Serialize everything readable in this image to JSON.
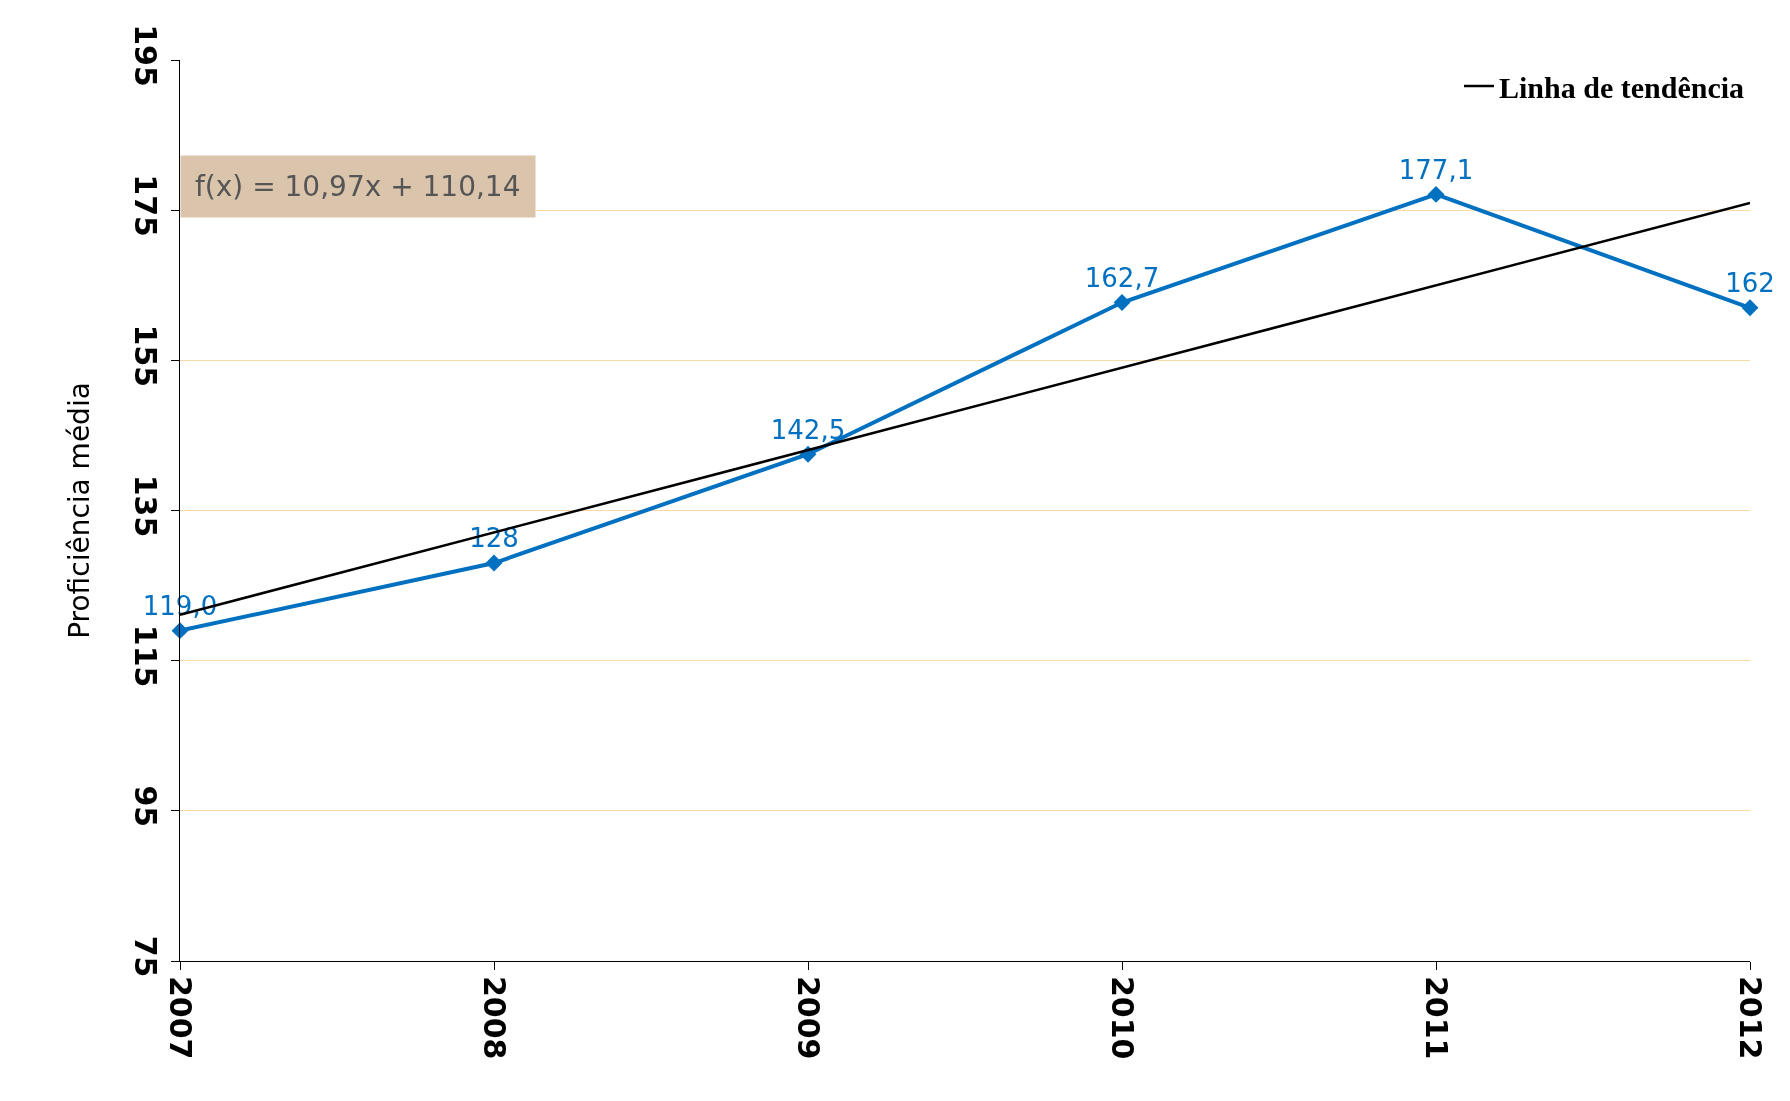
{
  "chart_data": {
    "type": "line",
    "ylabel": "Proficiência média",
    "x": [
      2007,
      2008,
      2009,
      2010,
      2011,
      2012
    ],
    "xlim": [
      2007,
      2012
    ],
    "xticks": [
      2007,
      2008,
      2009,
      2010,
      2011,
      2012
    ],
    "ylim": [
      75,
      195
    ],
    "yticks": [
      75,
      95,
      115,
      135,
      155,
      175,
      195
    ],
    "series": [
      {
        "color": "#0070c0",
        "values": [
          119.0,
          128,
          142.5,
          162.7,
          177.1,
          162
        ],
        "value_labels": [
          "119,0",
          "128",
          "142,5",
          "162,7",
          "177,1",
          "162"
        ],
        "marker": "diamond"
      },
      {
        "name": "Linha de tendência",
        "color": "#000000",
        "x": [
          2007,
          2012
        ],
        "values": [
          121.11,
          175.96
        ],
        "marker": "none"
      }
    ],
    "annotations": [
      "f(x) = 10,97x + 110,14"
    ],
    "grid": "y",
    "legend": "top right",
    "line_style": "solid"
  }
}
